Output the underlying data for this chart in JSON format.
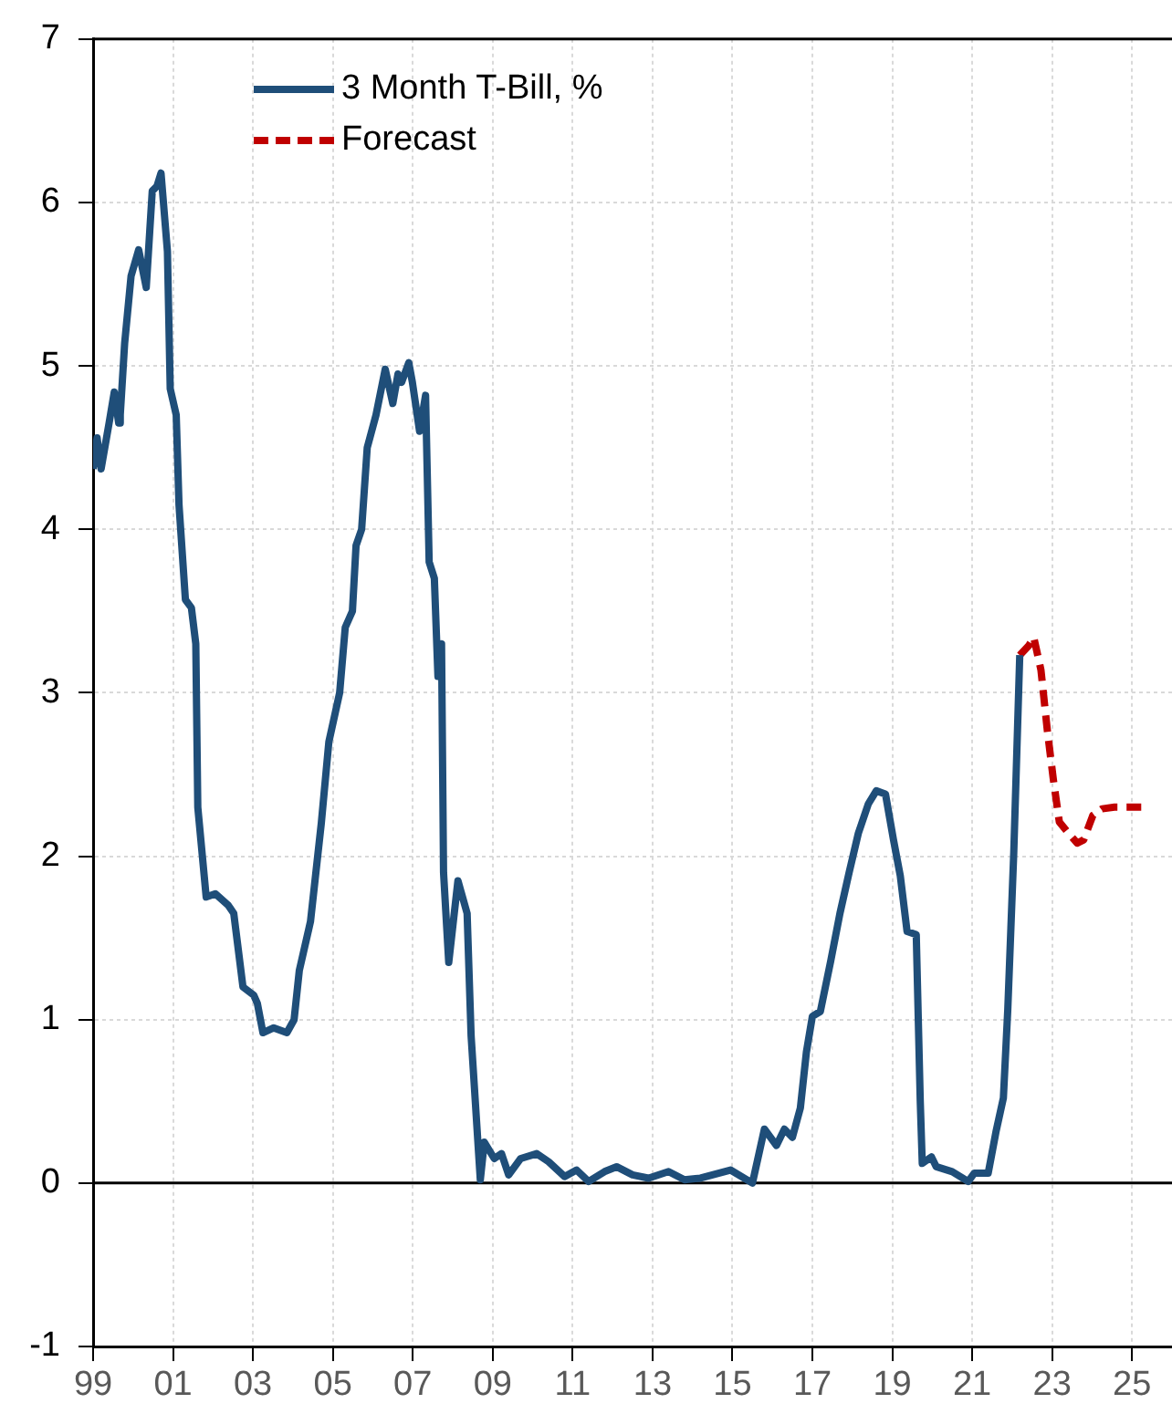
{
  "chart_data": {
    "type": "line",
    "xlim": [
      1999,
      2026
    ],
    "ylim": [
      -1,
      7
    ],
    "xticks": [
      {
        "value": 1999,
        "label": "99"
      },
      {
        "value": 2001,
        "label": "01"
      },
      {
        "value": 2003,
        "label": "03"
      },
      {
        "value": 2005,
        "label": "05"
      },
      {
        "value": 2007,
        "label": "07"
      },
      {
        "value": 2009,
        "label": "09"
      },
      {
        "value": 2011,
        "label": "11"
      },
      {
        "value": 2013,
        "label": "13"
      },
      {
        "value": 2015,
        "label": "15"
      },
      {
        "value": 2017,
        "label": "17"
      },
      {
        "value": 2019,
        "label": "19"
      },
      {
        "value": 2021,
        "label": "21"
      },
      {
        "value": 2023,
        "label": "23"
      },
      {
        "value": 2025,
        "label": "25"
      }
    ],
    "yticks": [
      -1,
      0,
      1,
      2,
      3,
      4,
      5,
      6,
      7
    ],
    "grid": true,
    "legend": "top left",
    "marker": "none",
    "ref_lines": [
      {
        "axis": "y",
        "value": 0,
        "color": "#000000"
      }
    ],
    "series": [
      {
        "name": "3 Month T-Bill, %",
        "color": "#1f4e79",
        "line_style": "solid",
        "x": [
          1999.0,
          1999.1,
          1999.2,
          1999.4,
          1999.53,
          1999.64,
          1999.68,
          1999.79,
          1999.95,
          2000.14,
          2000.33,
          2000.48,
          2000.6,
          2000.7,
          2000.86,
          2000.93,
          2001.08,
          2001.15,
          2001.31,
          2001.46,
          2001.57,
          2001.62,
          2001.83,
          2002.06,
          2002.38,
          2002.52,
          2002.75,
          2003.02,
          2003.11,
          2003.25,
          2003.52,
          2003.85,
          2004.03,
          2004.16,
          2004.44,
          2004.71,
          2004.9,
          2005.17,
          2005.31,
          2005.49,
          2005.58,
          2005.72,
          2005.86,
          2006.08,
          2006.31,
          2006.5,
          2006.63,
          2006.72,
          2006.9,
          2006.99,
          2007.17,
          2007.32,
          2007.41,
          2007.54,
          2007.63,
          2007.72,
          2007.77,
          2007.9,
          2008.13,
          2008.36,
          2008.46,
          2008.69,
          2008.79,
          2009.04,
          2009.22,
          2009.4,
          2009.7,
          2010.1,
          2010.4,
          2010.8,
          2011.1,
          2011.4,
          2011.8,
          2012.1,
          2012.5,
          2012.9,
          2013.4,
          2013.8,
          2014.2,
          2014.95,
          2015.5,
          2015.7,
          2015.8,
          2016.1,
          2016.3,
          2016.5,
          2016.7,
          2016.85,
          2017.0,
          2017.2,
          2017.46,
          2017.69,
          2017.92,
          2018.15,
          2018.4,
          2018.6,
          2018.83,
          2019.03,
          2019.2,
          2019.37,
          2019.6,
          2019.7,
          2019.75,
          2019.98,
          2020.1,
          2020.5,
          2020.9,
          2021.05,
          2021.4,
          2021.6,
          2021.78,
          2021.89,
          2022.04,
          2022.19
        ],
        "values": [
          4.37,
          4.56,
          4.37,
          4.65,
          4.84,
          4.65,
          4.7,
          5.14,
          5.55,
          5.71,
          5.48,
          6.07,
          6.1,
          6.18,
          5.7,
          4.86,
          4.7,
          4.15,
          3.57,
          3.52,
          3.3,
          2.3,
          1.75,
          1.77,
          1.7,
          1.65,
          1.2,
          1.15,
          1.1,
          0.92,
          0.95,
          0.92,
          1.0,
          1.3,
          1.6,
          2.2,
          2.7,
          3.0,
          3.4,
          3.5,
          3.9,
          4.0,
          4.5,
          4.7,
          4.98,
          4.77,
          4.95,
          4.9,
          5.02,
          4.9,
          4.6,
          4.82,
          3.8,
          3.7,
          3.1,
          3.3,
          1.9,
          1.35,
          1.85,
          1.65,
          0.9,
          0.02,
          0.25,
          0.15,
          0.18,
          0.05,
          0.15,
          0.18,
          0.13,
          0.04,
          0.08,
          0.01,
          0.07,
          0.1,
          0.05,
          0.03,
          0.07,
          0.02,
          0.03,
          0.08,
          0,
          0.22,
          0.33,
          0.23,
          0.33,
          0.28,
          0.46,
          0.8,
          1.02,
          1.05,
          1.36,
          1.65,
          1.9,
          2.14,
          2.32,
          2.4,
          2.38,
          2.1,
          1.88,
          1.54,
          1.52,
          0.5,
          0.12,
          0.16,
          0.1,
          0.07,
          0.01,
          0.06,
          0.06,
          0.32,
          0.52,
          1.06,
          2.02,
          3.23
        ]
      },
      {
        "name": "Forecast",
        "color": "#c00000",
        "line_style": "dashed",
        "x": [
          2022.19,
          2022.42,
          2022.54,
          2022.72,
          2022.88,
          2023.03,
          2023.18,
          2023.41,
          2023.63,
          2023.79,
          2024.02,
          2024.25,
          2024.56,
          2025.23
        ],
        "values": [
          3.23,
          3.29,
          3.34,
          3.14,
          2.77,
          2.47,
          2.21,
          2.14,
          2.08,
          2.1,
          2.25,
          2.29,
          2.3,
          2.3
        ]
      }
    ]
  }
}
